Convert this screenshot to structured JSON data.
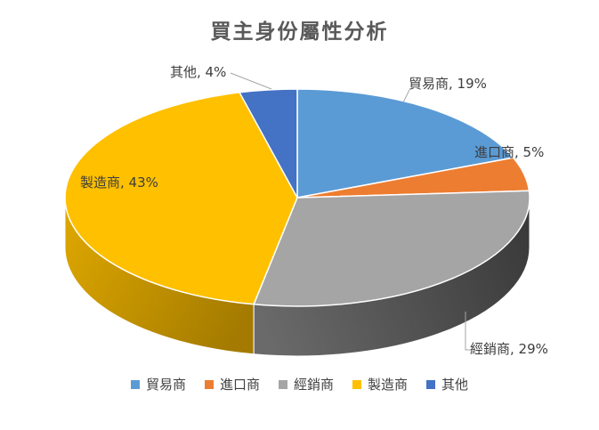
{
  "title": "買主身份屬性分析",
  "chart_data": {
    "type": "pie",
    "style": "3d",
    "title": "買主身份屬性分析",
    "categories": [
      "貿易商",
      "進口商",
      "經銷商",
      "製造商",
      "其他"
    ],
    "values": [
      19,
      5,
      29,
      43,
      4
    ],
    "unit": "%",
    "colors": [
      "#5B9BD5",
      "#ED7D31",
      "#A5A5A5",
      "#FFC000",
      "#4472C4"
    ],
    "start_angle_deg": 0,
    "direction": "clockwise",
    "legend_position": "bottom",
    "data_labels": [
      "貿易商, 19%",
      "進口商, 5%",
      "經銷商, 29%",
      "製造商, 43%",
      "其他, 4%"
    ]
  },
  "legend": {
    "items": [
      {
        "label": "貿易商",
        "color": "#5B9BD5"
      },
      {
        "label": "進口商",
        "color": "#ED7D31"
      },
      {
        "label": "經銷商",
        "color": "#A5A5A5"
      },
      {
        "label": "製造商",
        "color": "#FFC000"
      },
      {
        "label": "其他",
        "color": "#4472C4"
      }
    ]
  }
}
